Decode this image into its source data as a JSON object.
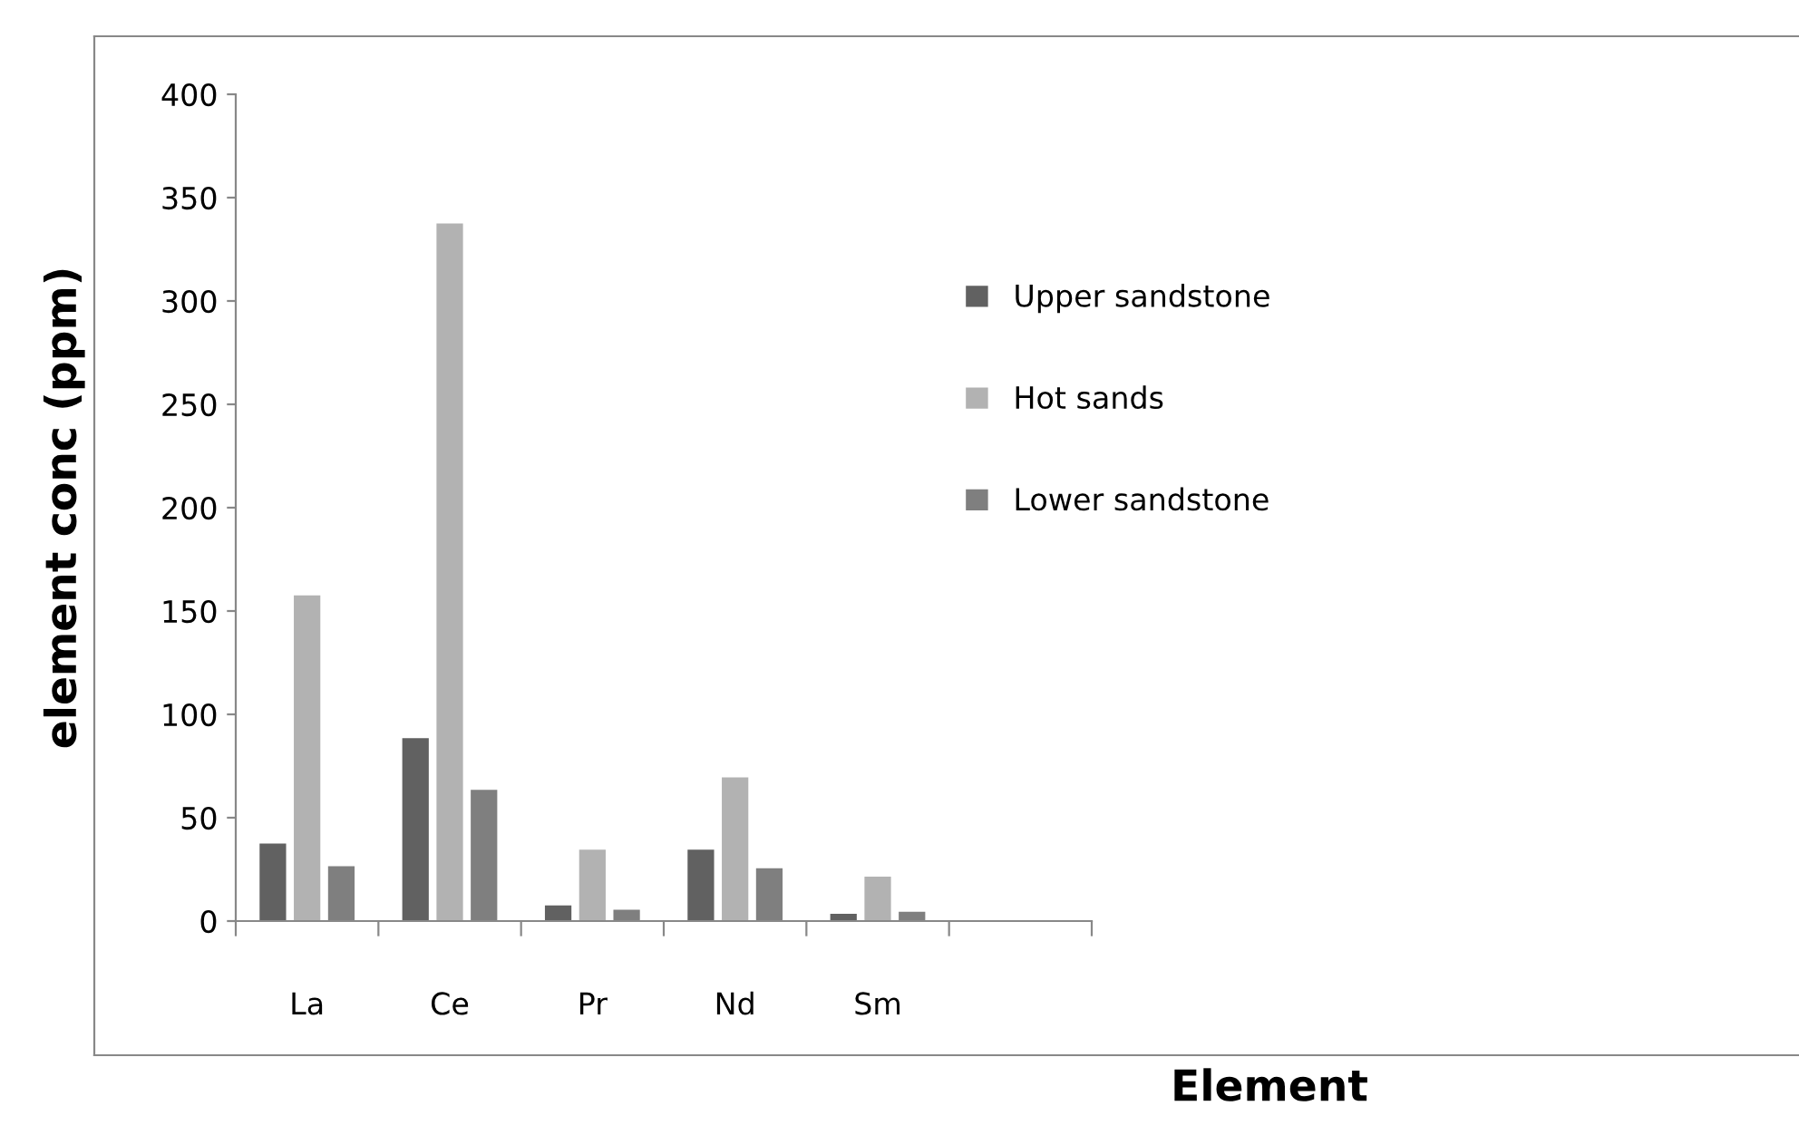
{
  "chart_data": {
    "type": "bar",
    "xlabel": "Element",
    "ylabel": "element conc (ppm)",
    "categories": [
      "La",
      "Ce",
      "Pr",
      "Nd",
      "Sm",
      null
    ],
    "series": [
      {
        "name": "Upper sandstone",
        "color": "#616161",
        "values": [
          38,
          89,
          8,
          35,
          4,
          null
        ]
      },
      {
        "name": "Hot sands",
        "color": "#b2b2b2",
        "values": [
          158,
          338,
          35,
          70,
          22,
          null
        ]
      },
      {
        "name": "Lower sandstone",
        "color": "#7f7f7f",
        "values": [
          27,
          64,
          6,
          26,
          5,
          null
        ]
      }
    ],
    "ylim": [
      0,
      400
    ],
    "yticks": [
      0,
      50,
      100,
      150,
      200,
      250,
      300,
      350,
      400
    ],
    "grid": false,
    "legend": "right"
  }
}
